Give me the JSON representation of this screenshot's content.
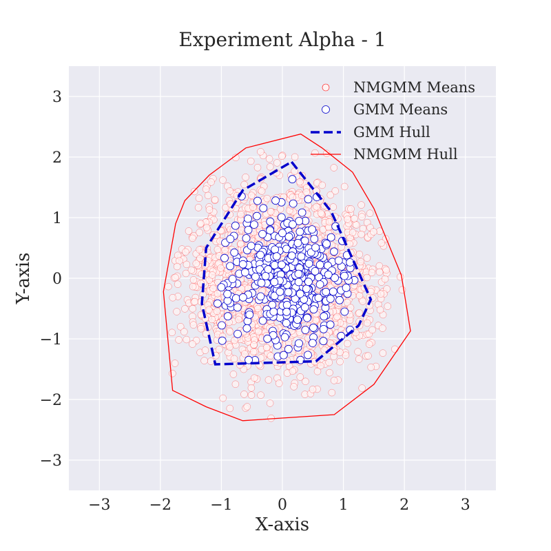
{
  "chart_data": {
    "type": "scatter",
    "title": "Experiment Alpha - 1",
    "xlabel": "X-axis",
    "ylabel": "Y-axis",
    "xlim": [
      -3.5,
      3.5
    ],
    "ylim": [
      -3.5,
      3.5
    ],
    "xticks": [
      -3,
      -2,
      -1,
      0,
      1,
      2,
      3
    ],
    "yticks": [
      -3,
      -2,
      -1,
      0,
      1,
      2,
      3
    ],
    "xtick_labels": [
      "−3",
      "−2",
      "−1",
      "0",
      "1",
      "2",
      "3"
    ],
    "ytick_labels": [
      "−3",
      "−2",
      "−1",
      "0",
      "1",
      "2",
      "3"
    ],
    "grid": true,
    "legend_position": "top-right",
    "colors": {
      "plot_background": "#eaeaf2",
      "grid": "#ffffff",
      "nmgmm": "#ff0000",
      "gmm": "#0000cc"
    },
    "series": [
      {
        "name": "NMGMM Means",
        "kind": "scatter",
        "distribution": {
          "mean_x": 0.0,
          "mean_y": 0.0,
          "std_x": 0.75,
          "std_y": 0.75,
          "count": 2000
        }
      },
      {
        "name": "GMM Means",
        "kind": "scatter",
        "distribution": {
          "mean_x": 0.1,
          "mean_y": 0.0,
          "std_x": 0.5,
          "std_y": 0.55,
          "count": 420
        }
      },
      {
        "name": "GMM Hull",
        "kind": "hull",
        "points": [
          [
            0.15,
            1.92
          ],
          [
            0.8,
            1.1
          ],
          [
            1.45,
            -0.35
          ],
          [
            1.25,
            -0.78
          ],
          [
            0.55,
            -1.37
          ],
          [
            -1.1,
            -1.42
          ],
          [
            -1.32,
            -0.42
          ],
          [
            -1.25,
            0.5
          ],
          [
            -0.65,
            1.45
          ]
        ]
      },
      {
        "name": "NMGMM Hull",
        "kind": "hull",
        "points": [
          [
            0.3,
            2.38
          ],
          [
            0.65,
            2.15
          ],
          [
            1.15,
            1.75
          ],
          [
            1.5,
            1.15
          ],
          [
            1.95,
            0.05
          ],
          [
            2.1,
            -0.87
          ],
          [
            1.5,
            -1.75
          ],
          [
            0.85,
            -2.25
          ],
          [
            -0.65,
            -2.35
          ],
          [
            -1.25,
            -2.12
          ],
          [
            -1.8,
            -1.85
          ],
          [
            -1.95,
            -0.22
          ],
          [
            -1.75,
            0.9
          ],
          [
            -1.6,
            1.28
          ],
          [
            -1.2,
            1.7
          ],
          [
            -0.6,
            2.15
          ]
        ]
      }
    ]
  }
}
